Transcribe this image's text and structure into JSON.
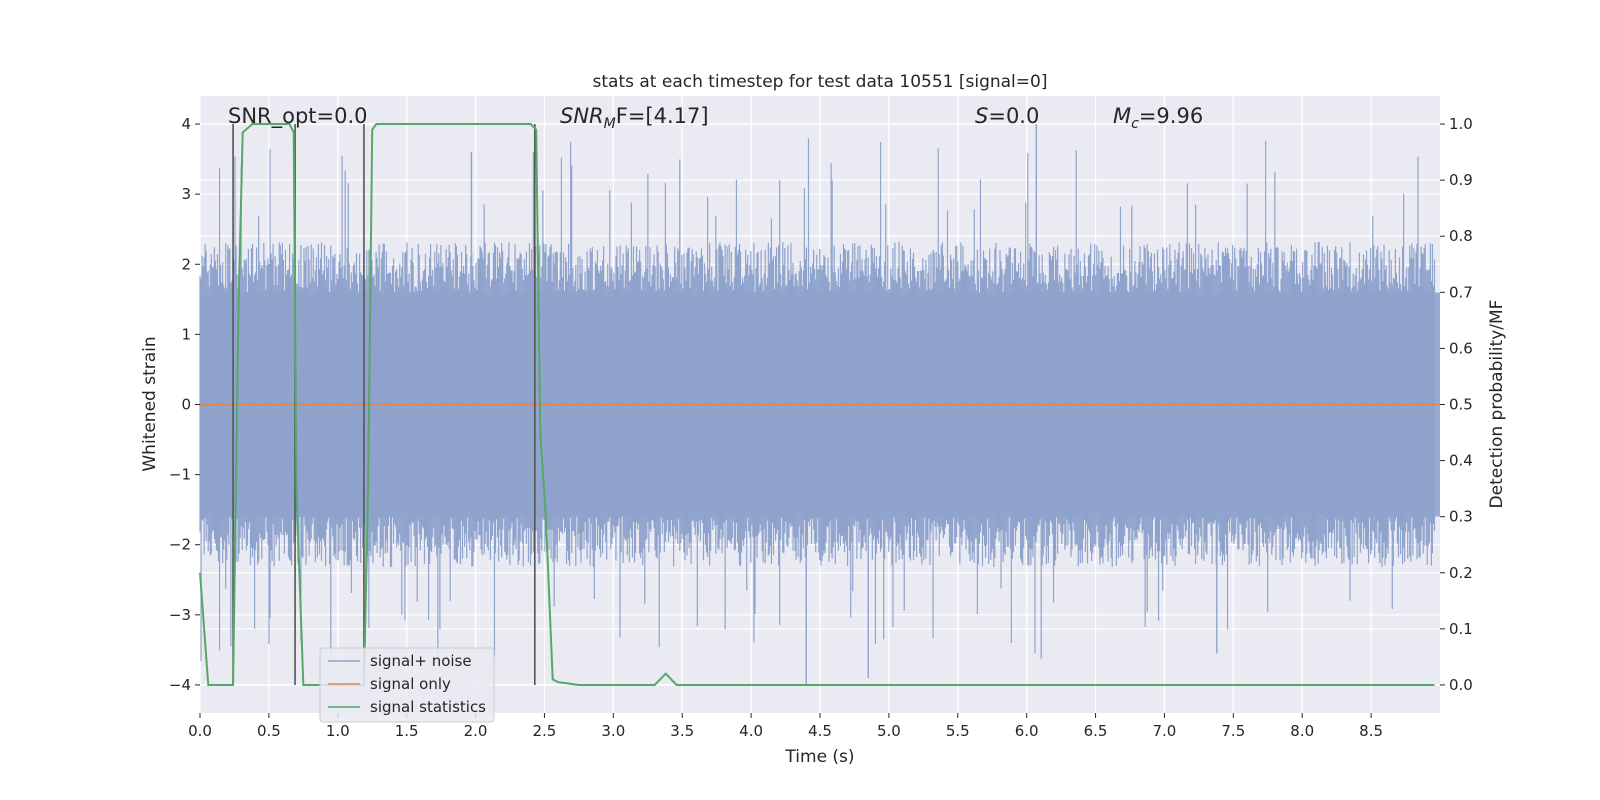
{
  "chart_data": {
    "type": "line",
    "title": "stats at each timestep for test data 10551 [signal=0]",
    "xlabel": "Time (s)",
    "ylabel": "Whitened strain",
    "y2label": "Detection probability/MF",
    "xlim": [
      0.0,
      9.0
    ],
    "ylim": [
      -4.4,
      4.4
    ],
    "y2lim": [
      -0.05,
      1.05
    ],
    "xticks": [
      "0.0",
      "0.5",
      "1.0",
      "1.5",
      "2.0",
      "2.5",
      "3.0",
      "3.5",
      "4.0",
      "4.5",
      "5.0",
      "5.5",
      "6.0",
      "6.5",
      "7.0",
      "7.5",
      "8.0",
      "8.5"
    ],
    "yticks": [
      "4",
      "3",
      "2",
      "1",
      "0",
      "−1",
      "−2",
      "−3",
      "−4"
    ],
    "y2ticks": [
      "1.0",
      "0.9",
      "0.8",
      "0.7",
      "0.6",
      "0.5",
      "0.4",
      "0.3",
      "0.2",
      "0.1",
      "0.0"
    ],
    "grid": true,
    "legend_position": "lower-left",
    "annotations": {
      "snr_opt": "SNR_opt=0.0",
      "snr_mf_base": "SNR",
      "snr_mf_sub": "M",
      "snr_mf_rest": "F=[4.17]",
      "s_var": "S",
      "s_val": "=0.0",
      "mc_base": "M",
      "mc_sub": "c",
      "mc_val": "=9.96"
    },
    "series": [
      {
        "name": "signal+ noise",
        "color": "#8fa3cc",
        "axis": "left",
        "description_stats": {
          "core_abs": 1.6,
          "typical_peak": 2.4,
          "max_peak": 4.0,
          "min_peak": -4.0
        },
        "values": []
      },
      {
        "name": "signal only",
        "color": "#dd8452",
        "axis": "left",
        "x": [
          0.0,
          9.0
        ],
        "y": [
          0.0,
          0.0
        ]
      },
      {
        "name": "signal statistics",
        "color": "#55a868",
        "axis": "right",
        "x": [
          0.0,
          0.06,
          0.24,
          0.28,
          0.31,
          0.38,
          0.65,
          0.68,
          0.7,
          0.75,
          1.19,
          1.22,
          1.25,
          1.28,
          2.4,
          2.44,
          2.47,
          2.51,
          2.56,
          2.6,
          2.75,
          3.3,
          3.38,
          3.46,
          8.96
        ],
        "y": [
          0.2,
          0.0,
          0.0,
          0.68,
          0.985,
          1.0,
          1.0,
          0.985,
          0.35,
          0.0,
          0.0,
          0.35,
          0.99,
          1.0,
          1.0,
          0.99,
          0.45,
          0.3,
          0.01,
          0.005,
          0.0,
          0.0,
          0.02,
          0.0,
          0.0
        ]
      }
    ],
    "vertical_markers": [
      0.24,
      0.69,
      1.19,
      2.43
    ]
  }
}
